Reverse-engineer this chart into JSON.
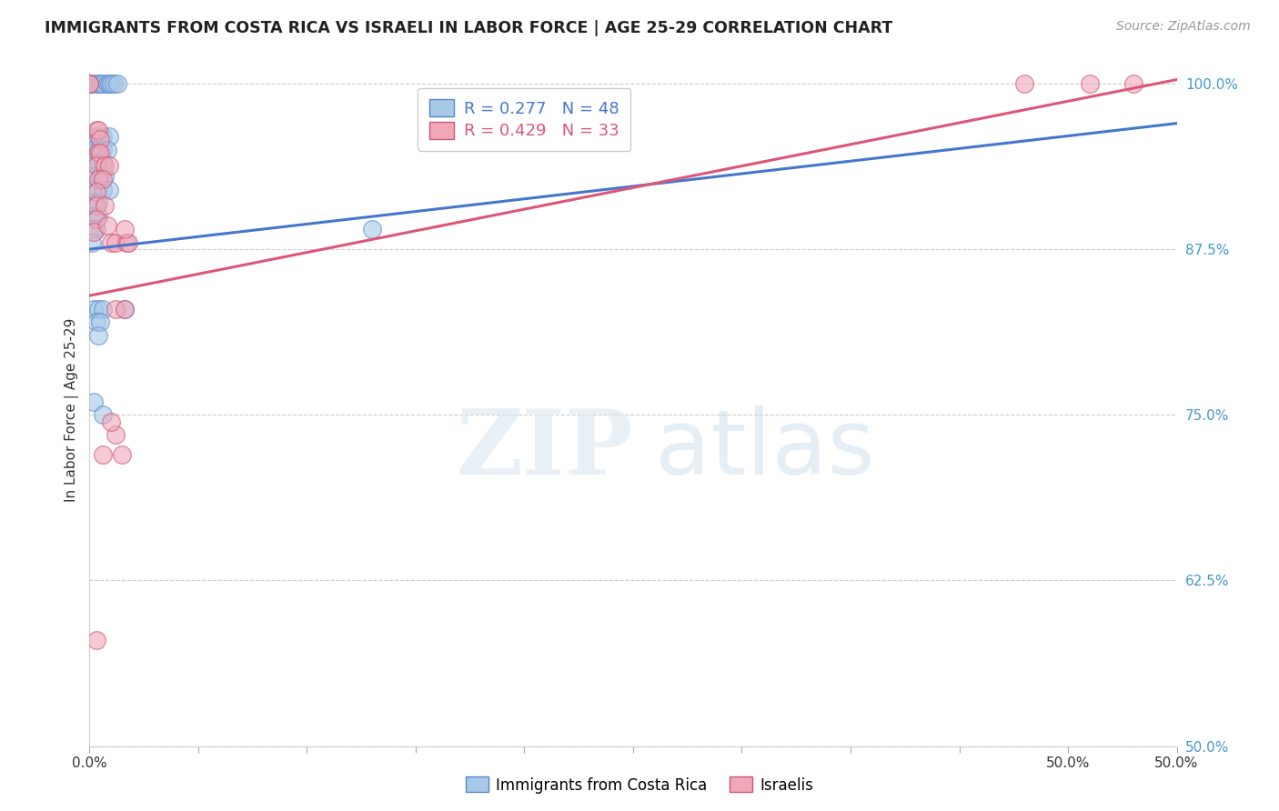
{
  "title": "IMMIGRANTS FROM COSTA RICA VS ISRAELI IN LABOR FORCE | AGE 25-29 CORRELATION CHART",
  "source": "Source: ZipAtlas.com",
  "ylabel": "In Labor Force | Age 25-29",
  "xlim": [
    0.0,
    0.5
  ],
  "ylim": [
    0.5,
    1.008
  ],
  "xticks": [
    0.0,
    0.05,
    0.1,
    0.15,
    0.2,
    0.25,
    0.3,
    0.35,
    0.4,
    0.45,
    0.5
  ],
  "xtick_labels_show": {
    "0.0": "0.0%",
    "0.5": "50.0%"
  },
  "yticks": [
    0.5,
    0.625,
    0.75,
    0.875,
    1.0
  ],
  "ytick_labels": [
    "50.0%",
    "62.5%",
    "75.0%",
    "87.5%",
    "100.0%"
  ],
  "blue_label": "Immigrants from Costa Rica",
  "pink_label": "Israelis",
  "blue_R": 0.277,
  "blue_N": 48,
  "pink_R": 0.429,
  "pink_N": 33,
  "blue_color": "#a8c8e8",
  "pink_color": "#f0a8b8",
  "blue_edge_color": "#5588cc",
  "pink_edge_color": "#cc5577",
  "blue_line_color": "#4477cc",
  "pink_line_color": "#dd5577",
  "blue_scatter": [
    [
      0.0,
      1.0
    ],
    [
      0.0,
      1.0
    ],
    [
      0.0,
      1.0
    ],
    [
      0.0,
      1.0
    ],
    [
      0.002,
      1.0
    ],
    [
      0.004,
      1.0
    ],
    [
      0.005,
      1.0
    ],
    [
      0.006,
      1.0
    ],
    [
      0.008,
      1.0
    ],
    [
      0.009,
      1.0
    ],
    [
      0.01,
      1.0
    ],
    [
      0.011,
      1.0
    ],
    [
      0.013,
      1.0
    ],
    [
      0.002,
      0.96
    ],
    [
      0.004,
      0.96
    ],
    [
      0.006,
      0.96
    ],
    [
      0.009,
      0.96
    ],
    [
      0.002,
      0.95
    ],
    [
      0.004,
      0.95
    ],
    [
      0.006,
      0.95
    ],
    [
      0.008,
      0.95
    ],
    [
      0.002,
      0.94
    ],
    [
      0.004,
      0.94
    ],
    [
      0.006,
      0.94
    ],
    [
      0.002,
      0.93
    ],
    [
      0.005,
      0.93
    ],
    [
      0.007,
      0.93
    ],
    [
      0.002,
      0.92
    ],
    [
      0.004,
      0.92
    ],
    [
      0.006,
      0.92
    ],
    [
      0.009,
      0.92
    ],
    [
      0.002,
      0.91
    ],
    [
      0.004,
      0.91
    ],
    [
      0.002,
      0.9
    ],
    [
      0.004,
      0.9
    ],
    [
      0.001,
      0.89
    ],
    [
      0.003,
      0.89
    ],
    [
      0.001,
      0.88
    ],
    [
      0.002,
      0.83
    ],
    [
      0.004,
      0.83
    ],
    [
      0.006,
      0.83
    ],
    [
      0.003,
      0.82
    ],
    [
      0.005,
      0.82
    ],
    [
      0.004,
      0.81
    ],
    [
      0.016,
      0.83
    ],
    [
      0.002,
      0.76
    ],
    [
      0.006,
      0.75
    ],
    [
      0.13,
      0.89
    ]
  ],
  "pink_scatter": [
    [
      0.0,
      1.0
    ],
    [
      0.0,
      1.0
    ],
    [
      0.003,
      0.965
    ],
    [
      0.004,
      0.965
    ],
    [
      0.005,
      0.958
    ],
    [
      0.004,
      0.948
    ],
    [
      0.005,
      0.948
    ],
    [
      0.003,
      0.938
    ],
    [
      0.007,
      0.938
    ],
    [
      0.009,
      0.938
    ],
    [
      0.004,
      0.928
    ],
    [
      0.006,
      0.928
    ],
    [
      0.003,
      0.918
    ],
    [
      0.003,
      0.908
    ],
    [
      0.007,
      0.908
    ],
    [
      0.003,
      0.898
    ],
    [
      0.002,
      0.888
    ],
    [
      0.01,
      0.88
    ],
    [
      0.012,
      0.88
    ],
    [
      0.017,
      0.88
    ],
    [
      0.018,
      0.88
    ],
    [
      0.012,
      0.83
    ],
    [
      0.016,
      0.83
    ],
    [
      0.006,
      0.72
    ],
    [
      0.015,
      0.72
    ],
    [
      0.43,
      1.0
    ],
    [
      0.46,
      1.0
    ],
    [
      0.48,
      1.0
    ],
    [
      0.003,
      0.58
    ],
    [
      0.012,
      0.735
    ],
    [
      0.01,
      0.745
    ],
    [
      0.016,
      0.89
    ],
    [
      0.008,
      0.893
    ]
  ],
  "blue_line": {
    "x0": 0.0,
    "y0": 0.875,
    "x1": 0.5,
    "y1": 0.97
  },
  "pink_line": {
    "x0": 0.0,
    "y0": 0.84,
    "x1": 0.5,
    "y1": 1.003
  },
  "background_color": "#ffffff",
  "grid_color": "#cccccc",
  "grid_style": "--"
}
